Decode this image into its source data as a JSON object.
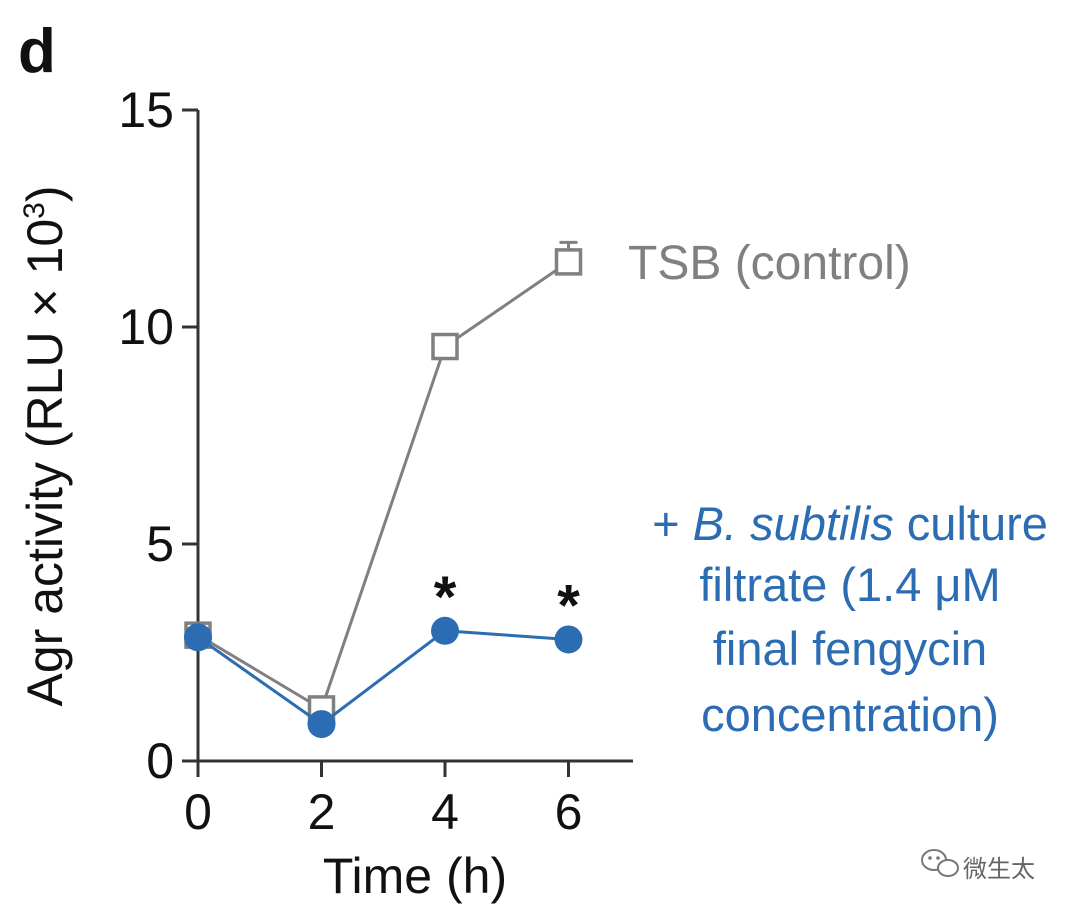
{
  "panel_label": "d",
  "chart_data": {
    "type": "line",
    "xlabel": "Time (h)",
    "ylabel_main": "Agr activity (RLU × 10",
    "ylabel_exp": "3",
    "ylabel_close": ")",
    "x_ticks": [
      0,
      2,
      4,
      6
    ],
    "y_ticks": [
      0,
      5,
      10,
      15
    ],
    "xlim": [
      0,
      7
    ],
    "ylim": [
      0,
      15
    ],
    "grid": false,
    "series": [
      {
        "key": "control",
        "color": "#808080",
        "marker": "open-square",
        "x": [
          0,
          2,
          4,
          6
        ],
        "y": [
          2.9,
          1.2,
          9.55,
          11.5
        ],
        "err_upper": [
          0,
          0,
          0,
          0.45
        ],
        "label": "TSB (control)"
      },
      {
        "key": "treatment",
        "color": "#2c6cb3",
        "marker": "filled-circle",
        "x": [
          0,
          2,
          4,
          6
        ],
        "y": [
          2.85,
          0.85,
          3.0,
          2.8
        ],
        "label_lines": [
          {
            "prefix": "+ ",
            "italic": "B. subtilis",
            "suffix": " culture"
          },
          {
            "text": "filtrate (1.4 μM"
          },
          {
            "text": "final fengycin"
          },
          {
            "text": "concentration)"
          }
        ]
      }
    ],
    "annotations": [
      {
        "x": 4,
        "y": 3.0,
        "text": "*"
      },
      {
        "x": 6,
        "y": 2.8,
        "text": "*"
      }
    ]
  },
  "watermark": {
    "icon": "wechat-icon",
    "text": "微生太"
  }
}
